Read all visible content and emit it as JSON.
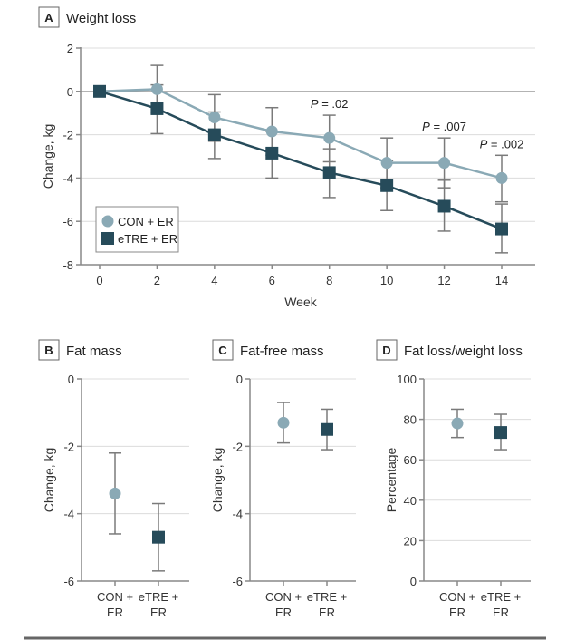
{
  "colors": {
    "con": "#8aa9b5",
    "etre": "#264b5a",
    "error_bar": "#7a7a7a",
    "grid": "#dcdcdc",
    "axis": "#888888"
  },
  "chart_data": [
    {
      "panel": "A",
      "title": "Weight loss",
      "type": "line",
      "xlabel": "Week",
      "ylabel": "Change, kg",
      "xlim": [
        0,
        14
      ],
      "ylim": [
        -8,
        2
      ],
      "x_ticks": [
        0,
        2,
        4,
        6,
        8,
        10,
        12,
        14
      ],
      "y_ticks": [
        2,
        0,
        -2,
        -4,
        -6,
        -8
      ],
      "grid": true,
      "legend_position": "bottom-left",
      "x": [
        0,
        2,
        4,
        6,
        8,
        10,
        12,
        14
      ],
      "series": [
        {
          "name": "CON + ER",
          "marker": "circle",
          "values": [
            0,
            0.1,
            -1.2,
            -1.85,
            -2.15,
            -3.3,
            -3.3,
            -4.0
          ],
          "upper": [
            0,
            1.2,
            -0.15,
            -0.75,
            -1.1,
            -2.15,
            -2.15,
            -2.95
          ],
          "lower": [
            0,
            -1.0,
            -2.3,
            -2.95,
            -3.25,
            -4.45,
            -4.45,
            -5.1
          ]
        },
        {
          "name": "eTRE + ER",
          "marker": "square",
          "values": [
            0,
            -0.8,
            -2.0,
            -2.85,
            -3.75,
            -4.35,
            -5.3,
            -6.35
          ],
          "upper": [
            0,
            0.3,
            -0.95,
            -1.85,
            -2.65,
            -3.2,
            -4.1,
            -5.2
          ],
          "lower": [
            0,
            -1.95,
            -3.1,
            -4.0,
            -4.9,
            -5.5,
            -6.45,
            -7.45
          ]
        }
      ],
      "annotations": [
        {
          "x": 8,
          "label_italic": "P",
          "label_rest": " = .02"
        },
        {
          "x": 12,
          "label_italic": "P",
          "label_rest": " = .007"
        },
        {
          "x": 14,
          "label_italic": "P",
          "label_rest": " = .002"
        }
      ]
    },
    {
      "panel": "B",
      "title": "Fat mass",
      "type": "scatter",
      "ylabel": "Change, kg",
      "ylim": [
        -6,
        0
      ],
      "y_ticks": [
        0,
        -2,
        -4,
        -6
      ],
      "grid": true,
      "categories": [
        [
          "CON +",
          "ER"
        ],
        [
          "eTRE +",
          "ER"
        ]
      ],
      "series": [
        {
          "name": "CON + ER",
          "marker": "circle",
          "value": -3.4,
          "lower": -4.6,
          "upper": -2.2
        },
        {
          "name": "eTRE + ER",
          "marker": "square",
          "value": -4.7,
          "lower": -5.7,
          "upper": -3.7
        }
      ]
    },
    {
      "panel": "C",
      "title": "Fat-free mass",
      "type": "scatter",
      "ylabel": "Change, kg",
      "ylim": [
        -6,
        0
      ],
      "y_ticks": [
        0,
        -2,
        -4,
        -6
      ],
      "grid": true,
      "categories": [
        [
          "CON +",
          "ER"
        ],
        [
          "eTRE +",
          "ER"
        ]
      ],
      "series": [
        {
          "name": "CON + ER",
          "marker": "circle",
          "value": -1.3,
          "lower": -1.9,
          "upper": -0.7
        },
        {
          "name": "eTRE + ER",
          "marker": "square",
          "value": -1.5,
          "lower": -2.1,
          "upper": -0.9
        }
      ]
    },
    {
      "panel": "D",
      "title": "Fat loss/weight loss",
      "type": "scatter",
      "ylabel": "Percentage",
      "ylim": [
        0,
        100
      ],
      "y_ticks": [
        100,
        80,
        60,
        40,
        20,
        0
      ],
      "grid": true,
      "categories": [
        [
          "CON +",
          "ER"
        ],
        [
          "eTRE +",
          "ER"
        ]
      ],
      "series": [
        {
          "name": "CON + ER",
          "marker": "circle",
          "value": 78,
          "lower": 71,
          "upper": 85
        },
        {
          "name": "eTRE + ER",
          "marker": "square",
          "value": 73.5,
          "lower": 65,
          "upper": 82.5
        }
      ]
    }
  ]
}
